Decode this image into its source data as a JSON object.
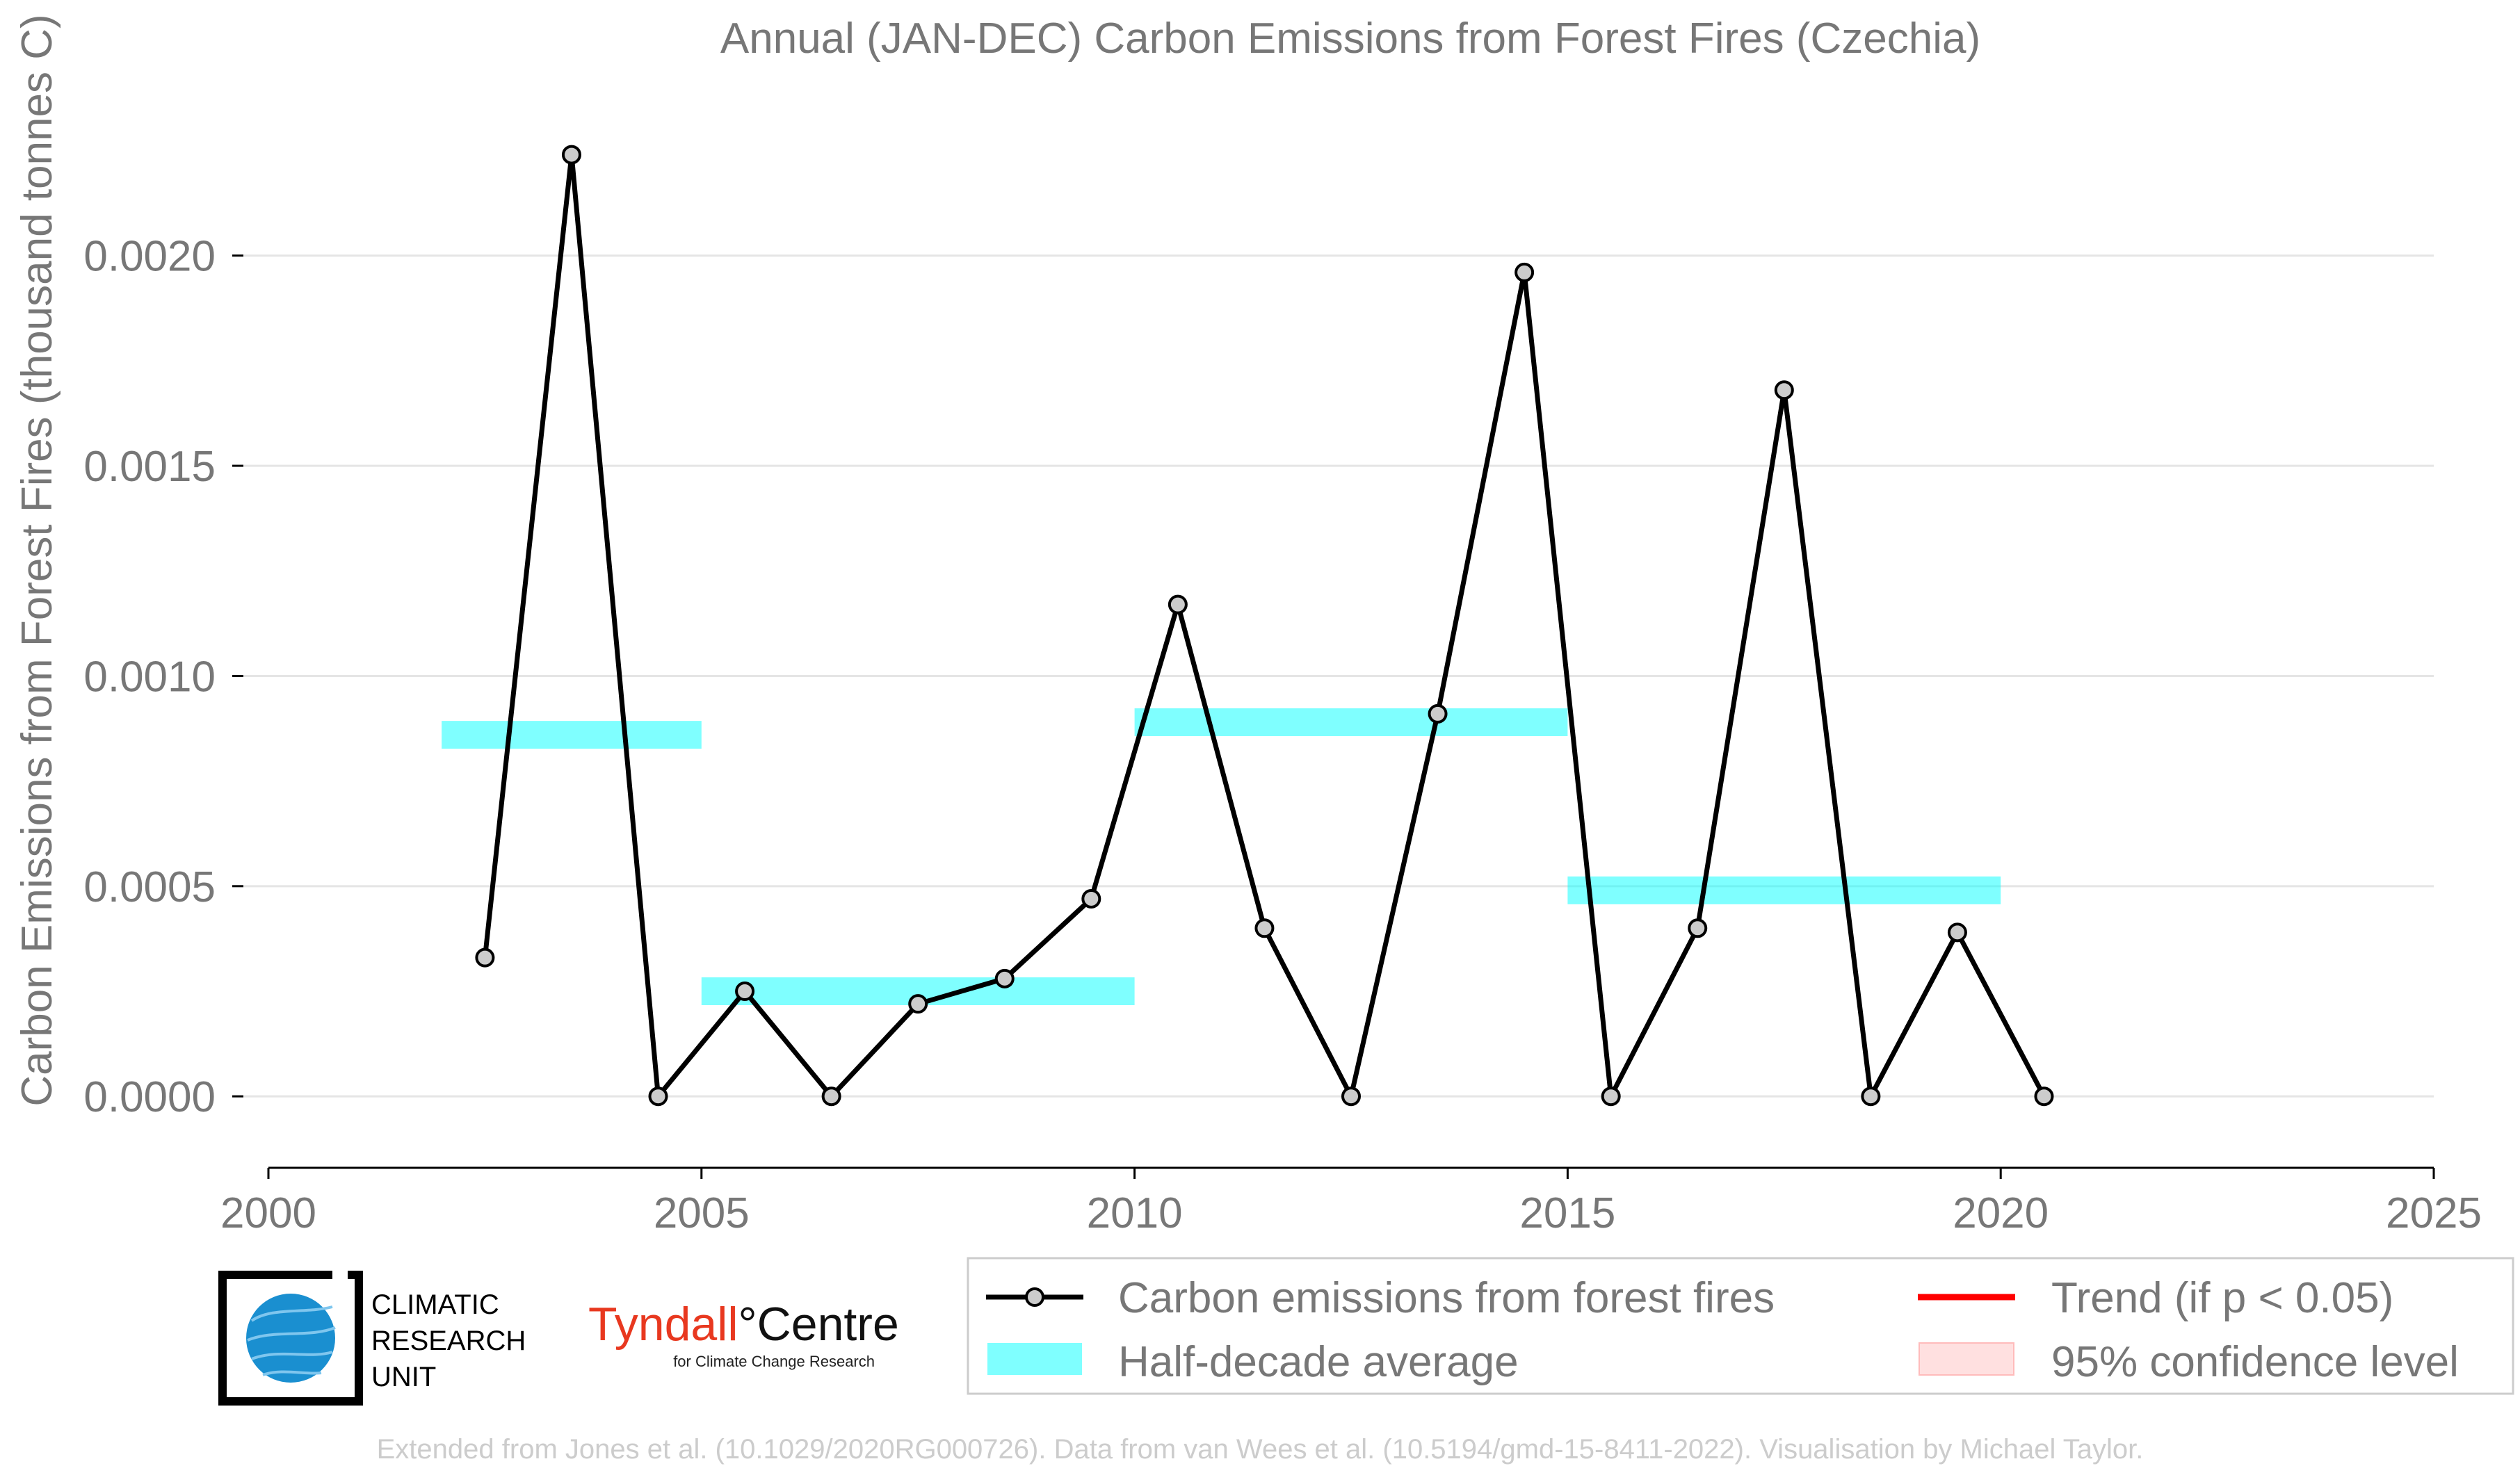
{
  "chart_data": {
    "type": "line",
    "title": "Annual (JAN-DEC) Carbon Emissions from Forest Fires (Czechia)",
    "xlabel": "",
    "ylabel": "Carbon Emissions from Forest Fires (thousand tonnes C)",
    "xlim": [
      2000,
      2025
    ],
    "ylim": [
      -0.00017,
      0.00236
    ],
    "x_ticks": [
      2000,
      2005,
      2010,
      2015,
      2020,
      2025
    ],
    "y_ticks": [
      0.0,
      0.0005,
      0.001,
      0.0015,
      0.002
    ],
    "y_tick_labels": [
      "0.0000",
      "0.0005",
      "0.0010",
      "0.0015",
      "0.0020"
    ],
    "x_tick_labels": [
      "2000",
      "2005",
      "2010",
      "2015",
      "2020",
      "2025"
    ],
    "grid": "horizontal",
    "series": [
      {
        "name": "Carbon emissions from forest fires",
        "color": "#000000",
        "x": [
          2002.5,
          2003.5,
          2004.5,
          2005.5,
          2006.5,
          2007.5,
          2008.5,
          2009.5,
          2010.5,
          2011.5,
          2012.5,
          2013.5,
          2014.5,
          2015.5,
          2016.5,
          2017.5,
          2018.5,
          2019.5,
          2020.5
        ],
        "values": [
          0.00033,
          0.00224,
          0.0,
          0.00025,
          0.0,
          0.00022,
          0.00028,
          0.00047,
          0.00117,
          0.0004,
          0.0,
          0.00091,
          0.00196,
          0.0,
          0.0004,
          0.00168,
          0.0,
          0.00039,
          0.0
        ]
      }
    ],
    "half_decade_average": {
      "name": "Half-decade average",
      "color": "#00ffff",
      "segments": [
        {
          "x_start": 2002,
          "x_end": 2005,
          "value": 0.00086
        },
        {
          "x_start": 2005,
          "x_end": 2010,
          "value": 0.00025
        },
        {
          "x_start": 2010,
          "x_end": 2015,
          "value": 0.00089
        },
        {
          "x_start": 2015,
          "x_end": 2020,
          "value": 0.00049
        }
      ]
    },
    "legend": {
      "placement": "bottom-right",
      "items": [
        {
          "label": "Carbon emissions from forest fires",
          "kind": "line-marker",
          "color": "#000000"
        },
        {
          "label": "Trend (if p < 0.05)",
          "kind": "line",
          "color": "#ff0000"
        },
        {
          "label": "Half-decade average",
          "kind": "patch",
          "color": "#00ffff"
        },
        {
          "label": "95% confidence level",
          "kind": "patch",
          "color": "#ffcccc"
        }
      ]
    }
  },
  "logos": {
    "cru_lines": [
      "CLIMATIC",
      "RESEARCH",
      "UNIT"
    ],
    "tyndall_red": "Tyndall",
    "tyndall_black": "°Centre",
    "tyndall_sub": "for Climate Change Research"
  },
  "footer": "Extended from Jones et al. (10.1029/2020RG000726). Data from van Wees et al. (10.5194/gmd-15-8411-2022). Visualisation by Michael Taylor."
}
